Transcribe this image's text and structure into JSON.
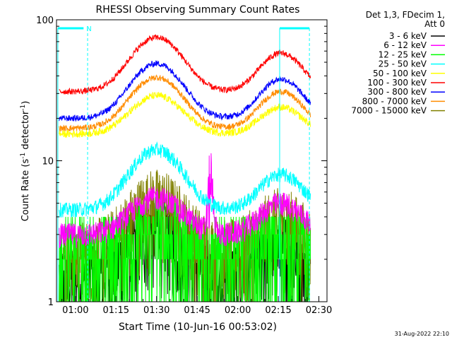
{
  "chart_data": {
    "type": "line",
    "title": "RHESSI Observing Summary Count Rates",
    "xlabel": "Start Time (10-Jun-16 00:53:02)",
    "ylabel": "Count Rate (s",
    "ylabel_sup1": "-1",
    "ylabel_mid": " detector",
    "ylabel_sup2": "-1",
    "ylabel_end": ")",
    "y_scale": "log",
    "ylim": [
      1,
      100
    ],
    "xlim_minutes_after_0100": [
      -7,
      93
    ],
    "x_ticks": [
      {
        "label": "01:00",
        "minutes_after_0100": 0
      },
      {
        "label": "01:15",
        "minutes_after_0100": 15
      },
      {
        "label": "01:30",
        "minutes_after_0100": 30
      },
      {
        "label": "01:45",
        "minutes_after_0100": 45
      },
      {
        "label": "02:00",
        "minutes_after_0100": 60
      },
      {
        "label": "02:15",
        "minutes_after_0100": 75
      },
      {
        "label": "02:30",
        "minutes_after_0100": 90
      }
    ],
    "y_ticks": [
      {
        "label": "1",
        "value": 1
      },
      {
        "label": "10",
        "value": 10
      },
      {
        "label": "100",
        "value": 100
      }
    ],
    "legend_header": [
      "Det 1,3, FDecim 1,",
      "Att 0"
    ],
    "legend_placement": "right",
    "footer": "31-Aug-2022 22:10",
    "markers": {
      "night_label": "N",
      "eclipse_lines_minutes": [
        -6.5,
        4.5,
        75.5,
        86.5
      ],
      "night_bar_left_minutes": [
        -6.5,
        3
      ],
      "night_bar_right_minutes": [
        75.5,
        86.5
      ],
      "marker_color": "#00ffff"
    },
    "series": [
      {
        "name": "3 - 6 keV",
        "color": "#000000",
        "profile": "low",
        "base": 1.5,
        "amp1": 2.0,
        "amp2": 1.0,
        "noise": 0.45
      },
      {
        "name": "6 - 12 keV",
        "color": "#ff00ff",
        "profile": "spike",
        "base": 3.0,
        "amp1": 2.5,
        "amp2": 2.0,
        "noise": 0.2
      },
      {
        "name": "12 - 25 keV",
        "color": "#00ff00",
        "profile": "flat",
        "base": 2.6,
        "amp1": 1.5,
        "amp2": 1.0,
        "noise": 0.2
      },
      {
        "name": "25 - 50 keV",
        "color": "#00ffff",
        "profile": "hump",
        "base": 4.5,
        "amp1": 7.5,
        "amp2": 3.5,
        "noise": 0.12
      },
      {
        "name": "50 - 100 keV",
        "color": "#ffff00",
        "profile": "hump",
        "base": 15.5,
        "amp1": 13.5,
        "amp2": 8.5,
        "noise": 0.06
      },
      {
        "name": "100 - 300 keV",
        "color": "#ff0000",
        "profile": "hump",
        "base": 31,
        "amp1": 44,
        "amp2": 27,
        "noise": 0.05
      },
      {
        "name": "300 - 800 keV",
        "color": "#0000ff",
        "profile": "hump",
        "base": 20,
        "amp1": 29,
        "amp2": 18,
        "noise": 0.05
      },
      {
        "name": "800 - 7000 keV",
        "color": "#ff8c00",
        "profile": "hump",
        "base": 17,
        "amp1": 22,
        "amp2": 14,
        "noise": 0.05
      },
      {
        "name": "7000 - 15000 keV",
        "color": "#808000",
        "profile": "low",
        "base": 2.2,
        "amp1": 3.0,
        "amp2": 1.6,
        "noise": 0.35
      }
    ]
  }
}
